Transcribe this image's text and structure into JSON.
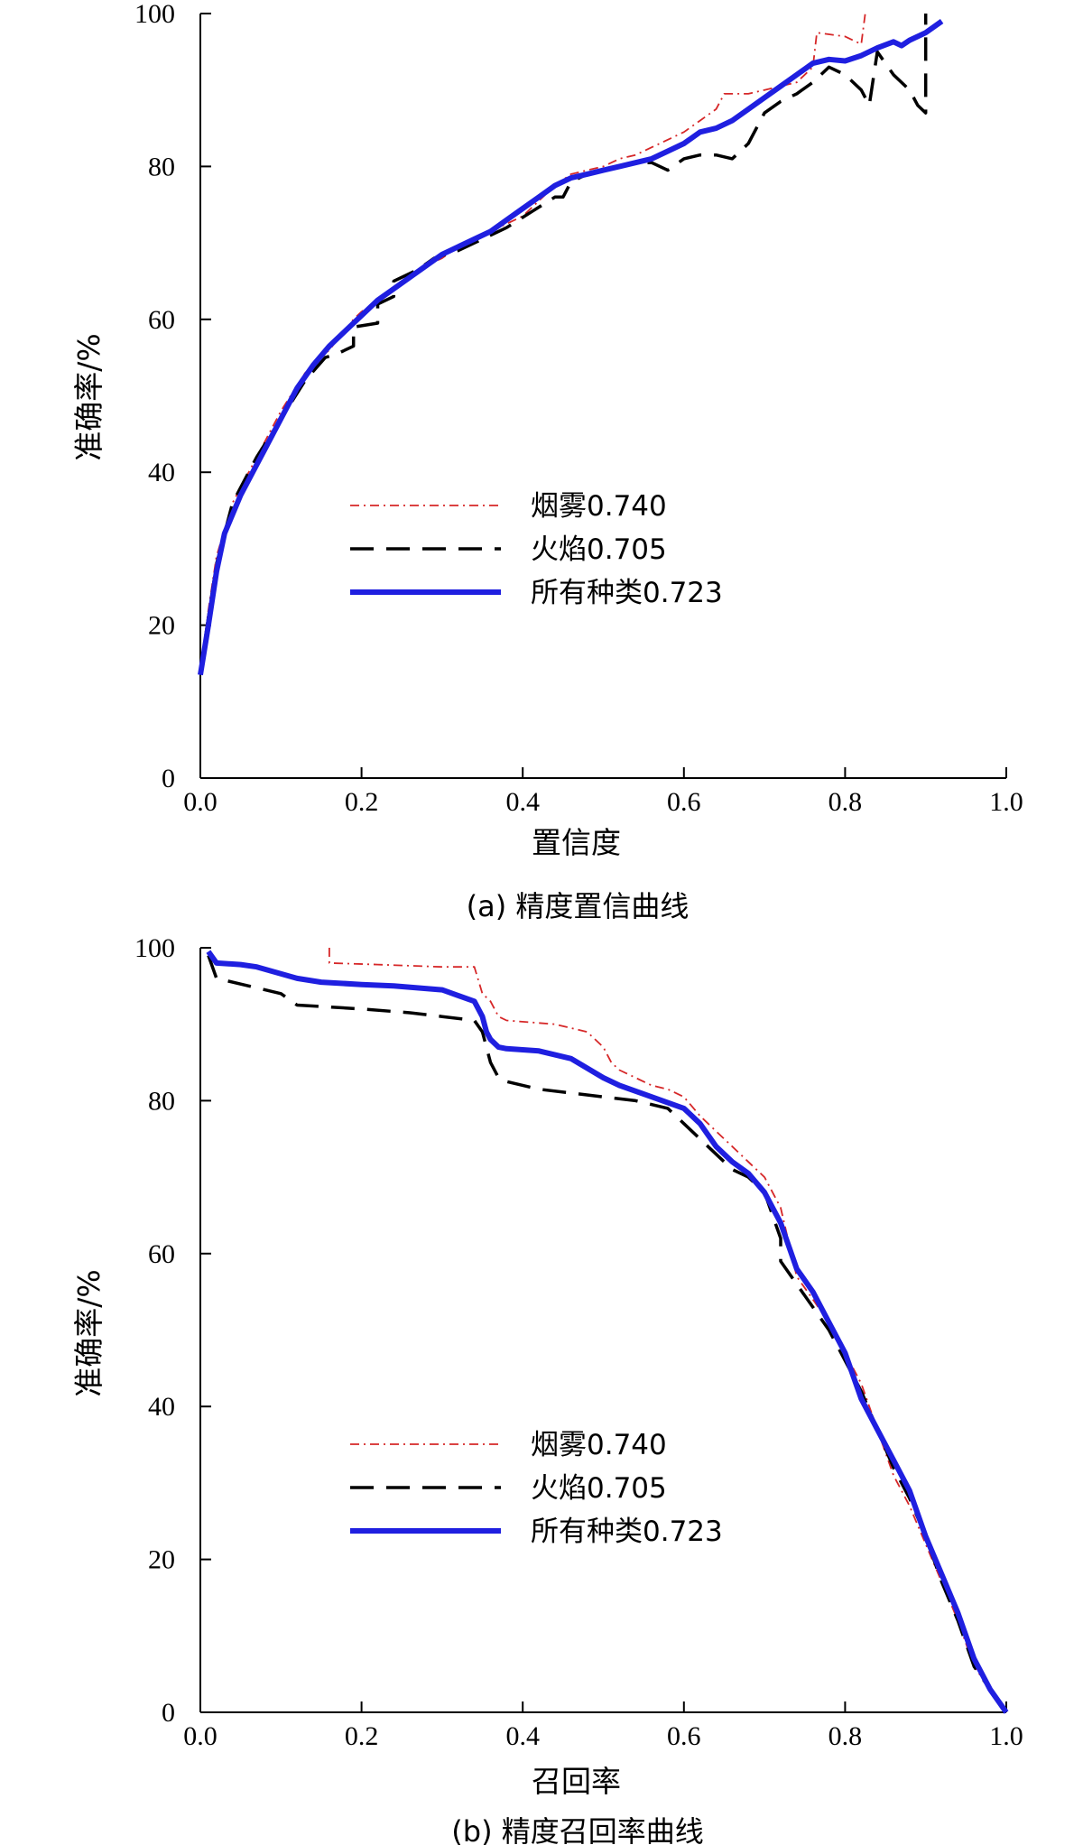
{
  "colors": {
    "smoke": "#d62728",
    "flame": "#000000",
    "all": "#1f1fe0"
  },
  "legend_placement": "center",
  "chart_data": [
    {
      "type": "line",
      "caption": "(a)  精度置信曲线",
      "xlabel": "置信度",
      "ylabel": "准确率/%",
      "xlim": [
        0,
        1
      ],
      "ylim": [
        0,
        100
      ],
      "xticks": [
        "0.0",
        "0.2",
        "0.4",
        "0.6",
        "0.8",
        "1.0"
      ],
      "yticks": [
        "0",
        "20",
        "40",
        "60",
        "80",
        "100"
      ],
      "series": [
        {
          "key": "smoke",
          "name": "烟雾0.740",
          "style": "dashdot",
          "x": [
            0,
            0.01,
            0.02,
            0.04,
            0.07,
            0.1,
            0.13,
            0.16,
            0.19,
            0.2,
            0.22,
            0.24,
            0.26,
            0.28,
            0.3,
            0.32,
            0.34,
            0.36,
            0.38,
            0.4,
            0.42,
            0.44,
            0.46,
            0.48,
            0.5,
            0.52,
            0.54,
            0.56,
            0.58,
            0.6,
            0.62,
            0.64,
            0.65,
            0.68,
            0.7,
            0.72,
            0.74,
            0.76,
            0.765,
            0.8,
            0.82,
            0.825
          ],
          "y": [
            14,
            22,
            29,
            36,
            42,
            48,
            53,
            56,
            60,
            61,
            62.5,
            64,
            65.5,
            67,
            68,
            69.5,
            70.5,
            71.5,
            72.5,
            73.5,
            75.5,
            77.5,
            79,
            79.5,
            80,
            81,
            81.5,
            82.5,
            83.5,
            84.5,
            86,
            87.5,
            89.5,
            89.5,
            90,
            90.5,
            91,
            93,
            97.5,
            97,
            96,
            100
          ]
        },
        {
          "key": "flame",
          "name": "火焰0.705",
          "style": "dashed",
          "x": [
            0,
            0.01,
            0.02,
            0.04,
            0.07,
            0.1,
            0.13,
            0.155,
            0.17,
            0.19,
            0.19,
            0.22,
            0.22,
            0.24,
            0.24,
            0.27,
            0.29,
            0.32,
            0.35,
            0.38,
            0.41,
            0.44,
            0.45,
            0.46,
            0.48,
            0.5,
            0.52,
            0.54,
            0.56,
            0.58,
            0.6,
            0.62,
            0.64,
            0.66,
            0.68,
            0.7,
            0.72,
            0.74,
            0.76,
            0.78,
            0.8,
            0.82,
            0.83,
            0.84,
            0.86,
            0.88,
            0.89,
            0.9,
            0.9
          ],
          "y": [
            14,
            21,
            28,
            36,
            42,
            47,
            52,
            55,
            55.5,
            56.5,
            59,
            59.5,
            62,
            63,
            65,
            66.5,
            68,
            69,
            70.5,
            72,
            74,
            76,
            76,
            78,
            79,
            79.5,
            80,
            80.5,
            80.5,
            79.5,
            81,
            81.5,
            81.5,
            81,
            83,
            87,
            88.5,
            89.5,
            91,
            93,
            92,
            90,
            88,
            95,
            92,
            90,
            88,
            87,
            100
          ]
        },
        {
          "key": "all",
          "name": "所有种类0.723",
          "style": "solid",
          "x": [
            0,
            0.01,
            0.02,
            0.03,
            0.05,
            0.08,
            0.1,
            0.12,
            0.14,
            0.16,
            0.18,
            0.2,
            0.22,
            0.24,
            0.26,
            0.28,
            0.3,
            0.32,
            0.34,
            0.36,
            0.38,
            0.4,
            0.42,
            0.44,
            0.46,
            0.48,
            0.5,
            0.52,
            0.54,
            0.56,
            0.58,
            0.6,
            0.62,
            0.64,
            0.66,
            0.68,
            0.7,
            0.72,
            0.74,
            0.76,
            0.78,
            0.8,
            0.82,
            0.84,
            0.86,
            0.87,
            0.88,
            0.9,
            0.92
          ],
          "y": [
            13.5,
            20,
            27,
            32,
            37,
            43,
            47,
            51,
            54,
            56.5,
            58.5,
            60.5,
            62.5,
            64,
            65.5,
            67,
            68.5,
            69.5,
            70.5,
            71.5,
            73,
            74.5,
            76,
            77.5,
            78.5,
            79,
            79.5,
            80,
            80.5,
            81,
            82,
            83,
            84.5,
            85,
            86,
            87.5,
            89,
            90.5,
            92,
            93.5,
            94,
            93.8,
            94.5,
            95.5,
            96.3,
            95.8,
            96.5,
            97.5,
            99
          ]
        }
      ]
    },
    {
      "type": "line",
      "caption": "(b)  精度召回率曲线",
      "xlabel": "召回率",
      "ylabel": "准确率/%",
      "xlim": [
        0,
        1
      ],
      "ylim": [
        0,
        100
      ],
      "xticks": [
        "0.0",
        "0.2",
        "0.4",
        "0.6",
        "0.8",
        "1.0"
      ],
      "yticks": [
        "0",
        "20",
        "40",
        "60",
        "80",
        "100"
      ],
      "series": [
        {
          "key": "smoke",
          "name": "烟雾0.740",
          "style": "dashdot",
          "x": [
            0.16,
            0.16,
            0.22,
            0.3,
            0.34,
            0.35,
            0.36,
            0.37,
            0.38,
            0.44,
            0.48,
            0.5,
            0.51,
            0.52,
            0.54,
            0.56,
            0.58,
            0.6,
            0.62,
            0.64,
            0.66,
            0.68,
            0.7,
            0.72,
            0.74,
            0.76,
            0.78,
            0.8,
            0.82,
            0.84,
            0.86,
            0.88,
            0.9,
            0.92,
            0.94,
            0.96,
            0.98,
            1.0
          ],
          "y": [
            100,
            98,
            97.8,
            97.5,
            97.5,
            94,
            93,
            91,
            90.5,
            90,
            89,
            87,
            85,
            84,
            83,
            82,
            81.5,
            80.5,
            78,
            76,
            74,
            72,
            70,
            66,
            57,
            54,
            51,
            47,
            43,
            37,
            31,
            27,
            22,
            17,
            12,
            6,
            3,
            0
          ]
        },
        {
          "key": "flame",
          "name": "火焰0.705",
          "style": "dashed",
          "x": [
            0.01,
            0.02,
            0.06,
            0.1,
            0.12,
            0.2,
            0.26,
            0.3,
            0.34,
            0.35,
            0.355,
            0.36,
            0.37,
            0.38,
            0.42,
            0.46,
            0.5,
            0.54,
            0.58,
            0.6,
            0.62,
            0.64,
            0.66,
            0.68,
            0.7,
            0.72,
            0.72,
            0.74,
            0.76,
            0.78,
            0.8,
            0.82,
            0.84,
            0.86,
            0.88,
            0.9,
            0.92,
            0.94,
            0.96,
            0.98,
            1.0
          ],
          "y": [
            99,
            96,
            95,
            94,
            92.5,
            92,
            91.5,
            91,
            90.5,
            89,
            87,
            85,
            83,
            82.5,
            81.5,
            81,
            80.5,
            80,
            79,
            77,
            75,
            73,
            71,
            70,
            68,
            62,
            59,
            56,
            53,
            50,
            46,
            42,
            37,
            32,
            28,
            23,
            17,
            12,
            6,
            3,
            0
          ]
        },
        {
          "key": "all",
          "name": "所有种类0.723",
          "style": "solid",
          "x": [
            0.01,
            0.02,
            0.05,
            0.07,
            0.12,
            0.15,
            0.2,
            0.24,
            0.3,
            0.34,
            0.35,
            0.355,
            0.36,
            0.37,
            0.38,
            0.42,
            0.46,
            0.5,
            0.52,
            0.56,
            0.6,
            0.62,
            0.64,
            0.66,
            0.68,
            0.7,
            0.72,
            0.74,
            0.76,
            0.78,
            0.8,
            0.82,
            0.84,
            0.86,
            0.88,
            0.9,
            0.92,
            0.94,
            0.96,
            0.98,
            1.0
          ],
          "y": [
            99.5,
            98,
            97.8,
            97.5,
            96,
            95.5,
            95.2,
            95,
            94.5,
            93,
            91,
            89,
            88,
            87,
            86.8,
            86.5,
            85.5,
            83,
            82,
            80.5,
            79,
            77,
            74,
            72,
            70.5,
            68,
            64,
            58,
            55,
            51,
            47,
            41,
            37,
            33,
            29,
            23,
            18,
            13,
            7,
            3,
            0
          ]
        }
      ]
    }
  ]
}
